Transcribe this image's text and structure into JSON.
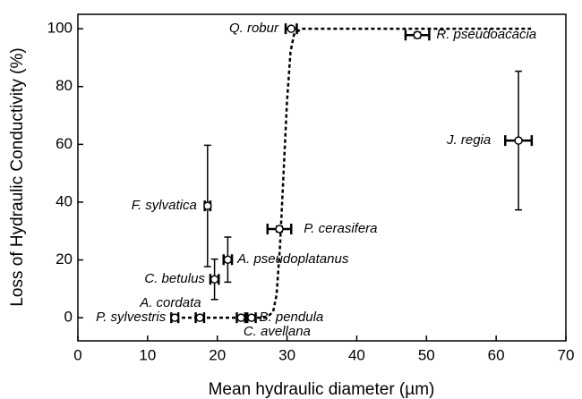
{
  "chart_data": {
    "type": "scatter",
    "xlabel": "Mean hydraulic diameter (µm)",
    "ylabel": "Loss of Hydraulic Conductivity (%)",
    "xlim": [
      0,
      70
    ],
    "xticks": [
      0,
      10,
      20,
      30,
      40,
      50,
      60,
      70
    ],
    "ylim": [
      -8,
      105
    ],
    "yticks": [
      0,
      20,
      40,
      60,
      80,
      100
    ],
    "color": "#000000",
    "points": [
      {
        "name": "Q. robur",
        "x": 30.6,
        "y": 100,
        "xerr": 0.8,
        "yerr": 0.5
      },
      {
        "name": "R. pseudoacacia",
        "x": 48.7,
        "y": 97.8,
        "xerr": 1.7,
        "yerr": 1
      },
      {
        "name": "J. regia",
        "x": 63.2,
        "y": 61.3,
        "xerr": 1.9,
        "yerr": 24
      },
      {
        "name": "F. sylvatica",
        "x": 18.6,
        "y": 38.7,
        "xerr": 0.4,
        "yerr": 21
      },
      {
        "name": "P. cerasifera",
        "x": 28.9,
        "y": 30.7,
        "xerr": 1.7,
        "yerr": 1
      },
      {
        "name": "A. pseudoplatanus",
        "x": 21.5,
        "y": 20.1,
        "xerr": 0.6,
        "yerr": 7.8
      },
      {
        "name": "C. betulus",
        "x": 19.6,
        "y": 13.3,
        "xerr": 0.6,
        "yerr": 7
      },
      {
        "name": "P. sylvestris",
        "x": 13.9,
        "y": 0,
        "xerr": 0.5,
        "yerr": 0.5
      },
      {
        "name": "A. cordata",
        "x": 17.5,
        "y": 0,
        "xerr": 0.6,
        "yerr": 0.5
      },
      {
        "name": "C. avellana",
        "x": 23.4,
        "y": 0,
        "xerr": 0.6,
        "yerr": 0.5
      },
      {
        "name": "B. pendula",
        "x": 24.9,
        "y": 0,
        "xerr": 0.6,
        "yerr": 0.5
      }
    ],
    "curve": {
      "x": [
        14,
        27,
        28,
        28.5,
        29,
        29.5,
        30,
        30.5,
        31,
        32,
        65
      ],
      "y": [
        0,
        0,
        2,
        8,
        25,
        50,
        75,
        92,
        98,
        100,
        100
      ]
    }
  }
}
